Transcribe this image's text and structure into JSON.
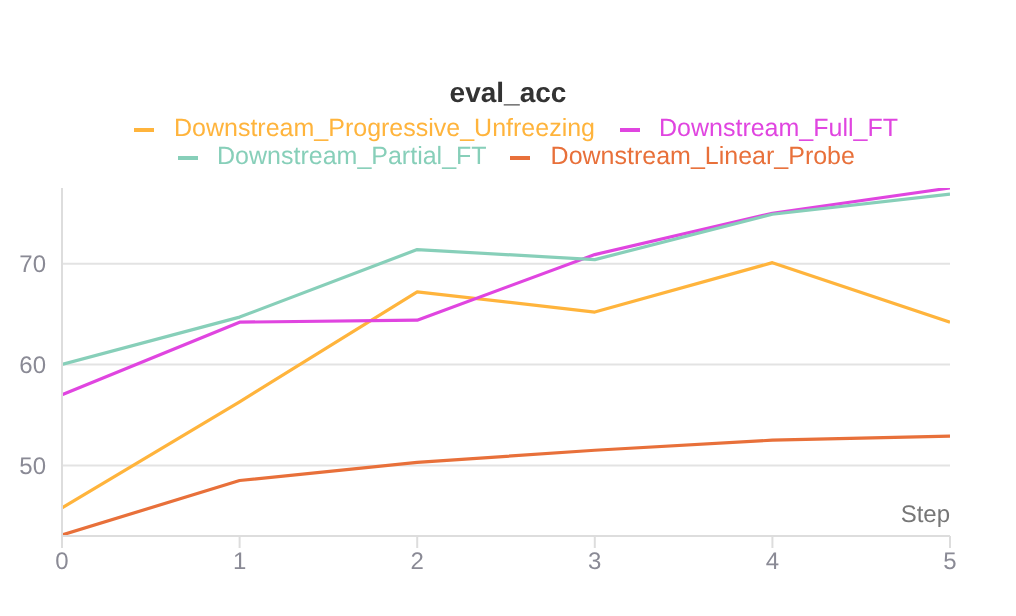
{
  "chart_data": {
    "type": "line",
    "title": "eval_acc",
    "xlabel": "Step",
    "x": [
      0,
      1,
      2,
      3,
      4,
      5
    ],
    "xlim": [
      0,
      5
    ],
    "xticks": [
      0,
      1,
      2,
      3,
      4,
      5
    ],
    "ylim": [
      43,
      77.5
    ],
    "yticks": [
      50,
      60,
      70
    ],
    "grid": "y",
    "legend": "top",
    "marker": "none",
    "line_style": "solid",
    "series": [
      {
        "name": "Downstream_Progressive_Unfreezing",
        "color": "#ffb43c",
        "values": [
          45.8,
          56.3,
          67.2,
          65.2,
          70.1,
          64.2
        ]
      },
      {
        "name": "Downstream_Full_FT",
        "color": "#e045e0",
        "values": [
          57.0,
          64.2,
          64.4,
          70.9,
          75.0,
          77.5
        ]
      },
      {
        "name": "Downstream_Partial_FT",
        "color": "#87cfb9",
        "values": [
          60.0,
          64.7,
          71.4,
          70.4,
          74.9,
          76.9
        ]
      },
      {
        "name": "Downstream_Linear_Probe",
        "color": "#e8703a",
        "values": [
          43.1,
          48.5,
          50.3,
          51.5,
          52.5,
          52.9
        ]
      }
    ]
  }
}
